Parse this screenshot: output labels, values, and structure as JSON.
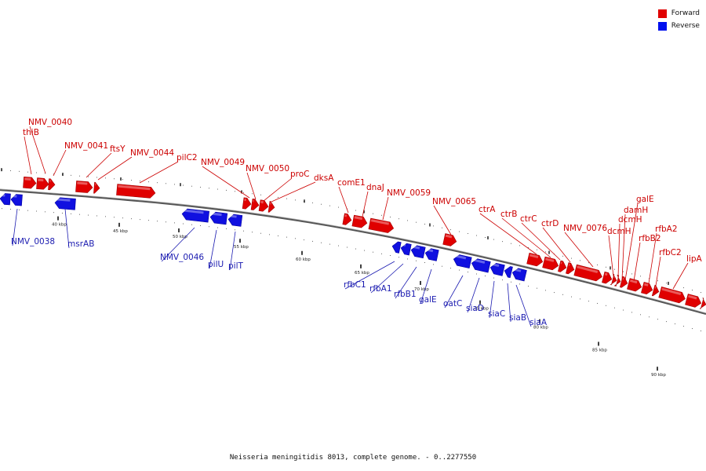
{
  "legend": [
    {
      "label": "Forward",
      "color": "#e00000"
    },
    {
      "label": "Reverse",
      "color": "#0010ee"
    }
  ],
  "footer": "Neisseria meningitidis 8013, complete genome. - 0..2277550",
  "colors": {
    "forward": "#e00000",
    "forward_label": "#cc0000",
    "reverse": "#1010e0",
    "reverse_label": "#1a1ab0",
    "backbone": "#555555"
  },
  "ticks": [
    "40 kbp",
    "45 kbp",
    "50 kbp",
    "55 kbp",
    "60 kbp",
    "65 kbp",
    "70 kbp",
    "75 kbp",
    "80 kbp",
    "85 kbp",
    "90 kbp"
  ],
  "forward_genes": [
    "NMV_0040",
    "thiB",
    "NMV_0041",
    "ftsY",
    "NMV_0044",
    "pilC2",
    "NMV_0049",
    "NMV_0050",
    "proC",
    "dksA",
    "comE1",
    "dnaJ",
    "NMV_0059",
    "NMV_0065",
    "ctrA",
    "ctrB",
    "ctrC",
    "ctrD",
    "NMV_0076",
    "dcmH",
    "dcmH",
    "damH",
    "galE",
    "rfbB2",
    "rfbA2",
    "rfbC2",
    "lipA"
  ],
  "reverse_genes": [
    "NMV_0038",
    "msrAB",
    "NMV_0046",
    "pilU",
    "pilT",
    "rfbC1",
    "rfbA1",
    "rfbB1",
    "galE",
    "oatC",
    "siaD",
    "siaC",
    "siaB",
    "siaA"
  ]
}
